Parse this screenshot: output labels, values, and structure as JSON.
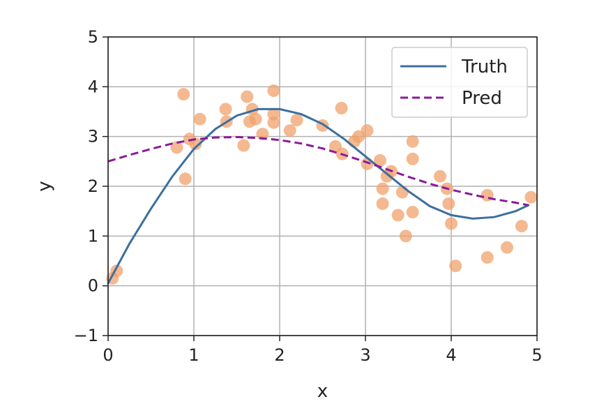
{
  "chart_data": {
    "type": "line",
    "xlabel": "x",
    "ylabel": "y",
    "xlim": [
      0,
      5
    ],
    "ylim": [
      -1,
      5
    ],
    "xticks": [
      "0",
      "1",
      "2",
      "3",
      "4",
      "5"
    ],
    "yticks": [
      "−1",
      "0",
      "1",
      "2",
      "3",
      "4",
      "5"
    ],
    "grid": true,
    "legend_position": "top-right",
    "series": [
      {
        "name": "Truth",
        "style": "solid",
        "color": "#3b6fa0",
        "x": [
          0.0,
          0.25,
          0.5,
          0.75,
          1.0,
          1.25,
          1.5,
          1.75,
          2.0,
          2.25,
          2.5,
          2.75,
          3.0,
          3.25,
          3.5,
          3.75,
          4.0,
          4.25,
          4.5,
          4.75,
          4.9
        ],
        "y": [
          0.05,
          0.85,
          1.55,
          2.2,
          2.75,
          3.15,
          3.42,
          3.55,
          3.55,
          3.45,
          3.25,
          2.95,
          2.6,
          2.25,
          1.9,
          1.6,
          1.42,
          1.35,
          1.38,
          1.5,
          1.62
        ]
      },
      {
        "name": "Pred",
        "style": "dashed",
        "color": "#8b1a9a",
        "x": [
          0.0,
          0.25,
          0.5,
          0.75,
          1.0,
          1.25,
          1.5,
          1.75,
          2.0,
          2.25,
          2.5,
          2.75,
          3.0,
          3.25,
          3.5,
          3.75,
          4.0,
          4.25,
          4.5,
          4.75,
          4.9
        ],
        "y": [
          2.5,
          2.63,
          2.75,
          2.86,
          2.94,
          2.98,
          2.99,
          2.97,
          2.93,
          2.86,
          2.76,
          2.63,
          2.49,
          2.34,
          2.19,
          2.05,
          1.93,
          1.83,
          1.74,
          1.67,
          1.62
        ]
      }
    ],
    "scatter": {
      "color": "#f0a26b",
      "points": [
        [
          0.05,
          0.15
        ],
        [
          0.1,
          0.3
        ],
        [
          0.88,
          3.85
        ],
        [
          0.9,
          2.15
        ],
        [
          0.8,
          2.78
        ],
        [
          0.95,
          2.95
        ],
        [
          1.02,
          2.85
        ],
        [
          1.07,
          3.35
        ],
        [
          1.37,
          3.55
        ],
        [
          1.38,
          3.3
        ],
        [
          1.58,
          2.82
        ],
        [
          1.62,
          3.8
        ],
        [
          1.68,
          3.55
        ],
        [
          1.65,
          3.3
        ],
        [
          1.72,
          3.35
        ],
        [
          1.8,
          3.05
        ],
        [
          1.93,
          3.92
        ],
        [
          1.93,
          3.45
        ],
        [
          1.93,
          3.28
        ],
        [
          2.12,
          3.12
        ],
        [
          2.2,
          3.33
        ],
        [
          2.5,
          3.22
        ],
        [
          2.65,
          2.8
        ],
        [
          2.73,
          2.65
        ],
        [
          2.72,
          3.57
        ],
        [
          2.87,
          2.9
        ],
        [
          2.92,
          3.0
        ],
        [
          3.02,
          3.12
        ],
        [
          3.02,
          2.45
        ],
        [
          3.17,
          2.52
        ],
        [
          3.2,
          1.95
        ],
        [
          3.2,
          1.65
        ],
        [
          3.25,
          2.2
        ],
        [
          3.3,
          2.3
        ],
        [
          3.38,
          1.42
        ],
        [
          3.43,
          1.88
        ],
        [
          3.47,
          1.0
        ],
        [
          3.55,
          2.9
        ],
        [
          3.55,
          2.55
        ],
        [
          3.55,
          1.48
        ],
        [
          3.87,
          2.2
        ],
        [
          3.95,
          1.95
        ],
        [
          3.97,
          1.65
        ],
        [
          4.0,
          1.25
        ],
        [
          4.05,
          0.4
        ],
        [
          4.42,
          1.82
        ],
        [
          4.42,
          0.57
        ],
        [
          4.65,
          0.77
        ],
        [
          4.82,
          1.2
        ],
        [
          4.93,
          1.78
        ]
      ]
    }
  }
}
